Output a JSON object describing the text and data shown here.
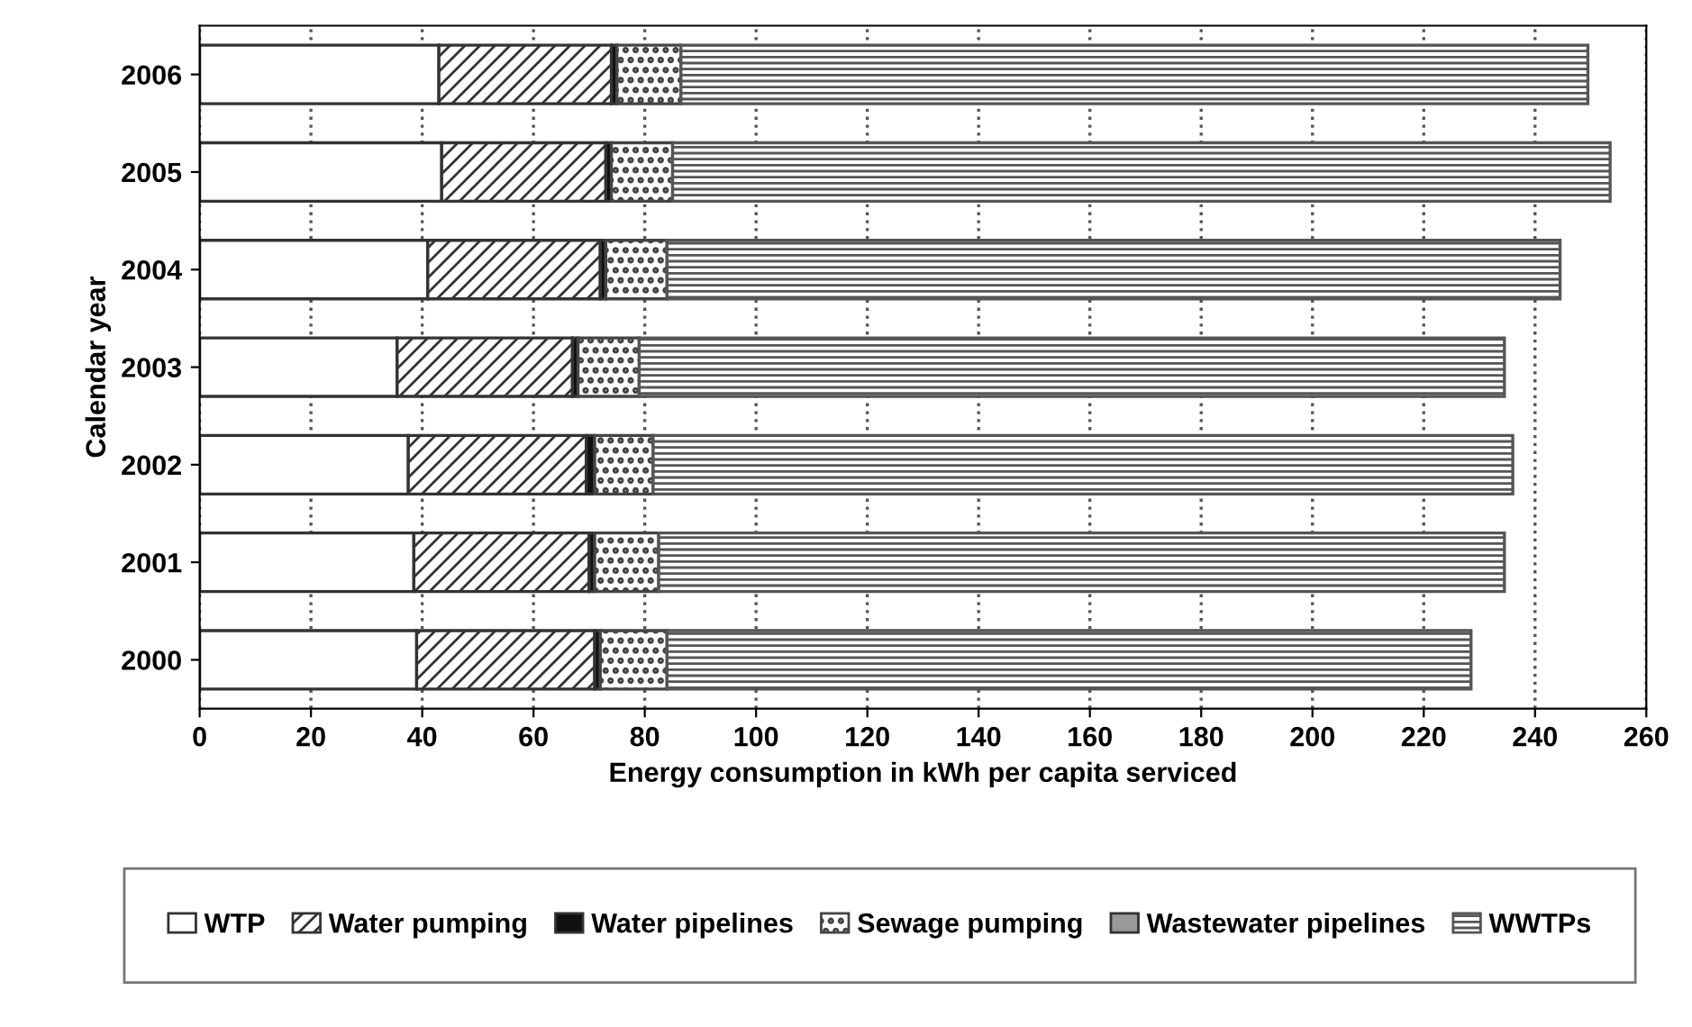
{
  "chart_data": {
    "type": "bar",
    "orientation": "horizontal",
    "stacked": true,
    "xlabel": "Energy consumption in kWh per capita serviced",
    "ylabel": "Calendar year",
    "categories": [
      "2006",
      "2005",
      "2004",
      "2003",
      "2002",
      "2001",
      "2000"
    ],
    "series": [
      {
        "name": "WTP",
        "color": "#ffffff",
        "values": [
          43,
          43.5,
          41,
          35.5,
          37.5,
          38.5,
          39
        ]
      },
      {
        "name": "Water pumping",
        "color": "#333333",
        "values": [
          31,
          29.5,
          31,
          31.5,
          32,
          31.5,
          32
        ]
      },
      {
        "name": "Water pipelines",
        "color": "#111111",
        "values": [
          1,
          1,
          1,
          1,
          1.5,
          1,
          1
        ]
      },
      {
        "name": "Sewage pumping",
        "color": "#444444",
        "values": [
          11.5,
          11,
          11,
          11,
          10.5,
          11.5,
          12
        ]
      },
      {
        "name": "Wastewater pipelines",
        "color": "#999999",
        "values": [
          null,
          null,
          null,
          null,
          null,
          null,
          null
        ]
      },
      {
        "name": "WWTPs",
        "color": "#555555",
        "values": [
          163,
          168.5,
          160.5,
          155.5,
          154.5,
          152,
          144.5
        ]
      }
    ],
    "xlim": [
      0,
      260
    ],
    "xticks": [
      0,
      20,
      40,
      60,
      80,
      100,
      120,
      140,
      160,
      180,
      200,
      220,
      240,
      260
    ],
    "grid": "x",
    "legend": "bottom"
  }
}
